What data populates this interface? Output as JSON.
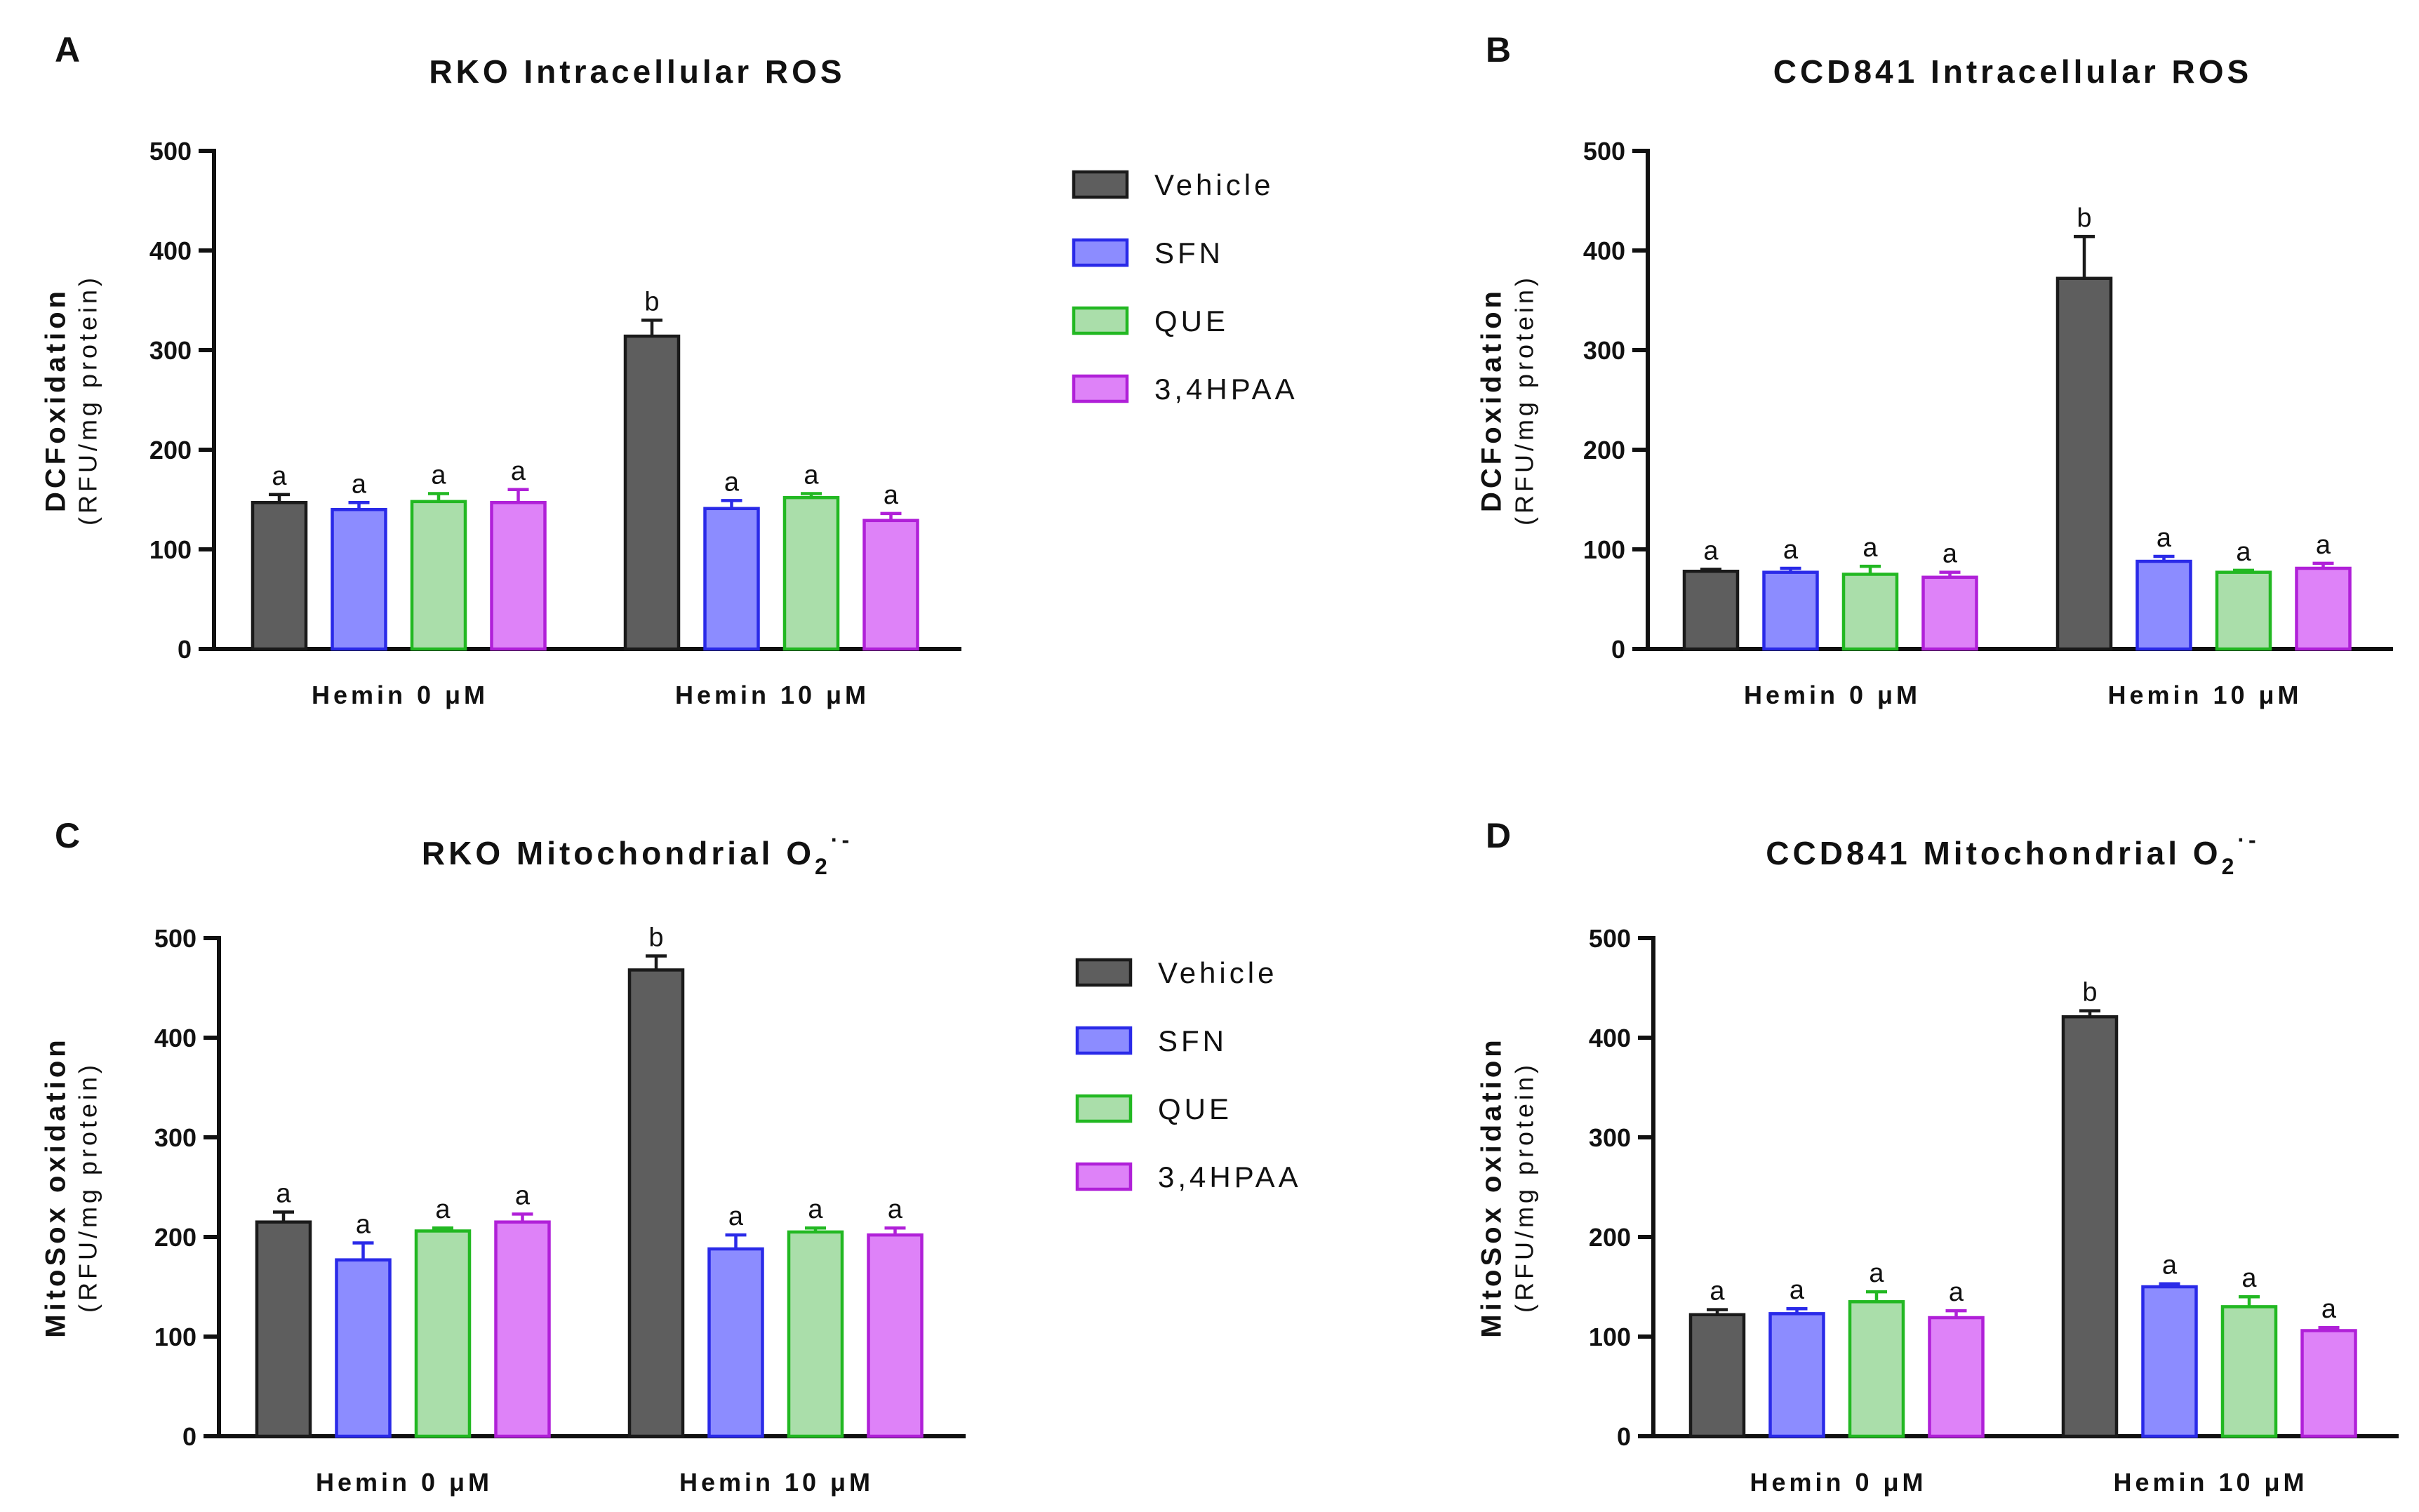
{
  "legend": [
    {
      "name": "Vehicle",
      "fill": "#5e5e5e",
      "stroke": "#1a1a1a"
    },
    {
      "name": "SFN",
      "fill": "#8c8cff",
      "stroke": "#2a2ae8"
    },
    {
      "name": "QUE",
      "fill": "#aadeaa",
      "stroke": "#22b822"
    },
    {
      "name": "3,4HPAA",
      "fill": "#de82f8",
      "stroke": "#b020d8"
    }
  ],
  "chart_data": [
    {
      "panel": "A",
      "type": "bar",
      "title": "RKO Intracellular ROS",
      "title_sub": "",
      "title_sup": "",
      "ylabel": "DCFoxidation",
      "ylabel_sub": "(RFU/mg protein)",
      "ylim": [
        0,
        500
      ],
      "yticks": [
        "0",
        "100",
        "200",
        "300",
        "400",
        "500"
      ],
      "categories": [
        "Hemin 0 μM",
        "Hemin 10 μM"
      ],
      "series": [
        {
          "name": "Vehicle",
          "values": [
            147,
            314
          ],
          "errors": [
            8,
            16
          ],
          "labels": [
            "a",
            "b"
          ]
        },
        {
          "name": "SFN",
          "values": [
            140,
            141
          ],
          "errors": [
            7,
            8
          ],
          "labels": [
            "a",
            "a"
          ]
        },
        {
          "name": "QUE",
          "values": [
            148,
            152
          ],
          "errors": [
            8,
            4
          ],
          "labels": [
            "a",
            "a"
          ]
        },
        {
          "name": "3,4HPAA",
          "values": [
            147,
            129
          ],
          "errors": [
            13,
            7
          ],
          "labels": [
            "a",
            "a"
          ]
        }
      ]
    },
    {
      "panel": "B",
      "type": "bar",
      "title": "CCD841 Intracellular ROS",
      "title_sub": "",
      "title_sup": "",
      "ylabel": "DCFoxidation",
      "ylabel_sub": "(RFU/mg protein)",
      "ylim": [
        0,
        500
      ],
      "yticks": [
        "0",
        "100",
        "200",
        "300",
        "400",
        "500"
      ],
      "categories": [
        "Hemin 0 μM",
        "Hemin 10 μM"
      ],
      "series": [
        {
          "name": "Vehicle",
          "values": [
            78,
            372
          ],
          "errors": [
            2,
            42
          ],
          "labels": [
            "a",
            "b"
          ]
        },
        {
          "name": "SFN",
          "values": [
            77,
            88
          ],
          "errors": [
            4,
            5
          ],
          "labels": [
            "a",
            "a"
          ]
        },
        {
          "name": "QUE",
          "values": [
            75,
            77
          ],
          "errors": [
            8,
            2
          ],
          "labels": [
            "a",
            "a"
          ]
        },
        {
          "name": "3,4HPAA",
          "values": [
            72,
            81
          ],
          "errors": [
            5,
            5
          ],
          "labels": [
            "a",
            "a"
          ]
        }
      ]
    },
    {
      "panel": "C",
      "type": "bar",
      "title": "RKO Mitochondrial O",
      "title_sub": "2",
      "title_sup": "·-",
      "ylabel": "MitoSox oxidation",
      "ylabel_sub": "(RFU/mg protein)",
      "ylim": [
        0,
        500
      ],
      "yticks": [
        "0",
        "100",
        "200",
        "300",
        "400",
        "500"
      ],
      "categories": [
        "Hemin 0 μM",
        "Hemin 10 μM"
      ],
      "series": [
        {
          "name": "Vehicle",
          "values": [
            215,
            468
          ],
          "errors": [
            10,
            14
          ],
          "labels": [
            "a",
            "b"
          ]
        },
        {
          "name": "SFN",
          "values": [
            177,
            188
          ],
          "errors": [
            17,
            14
          ],
          "labels": [
            "a",
            "a"
          ]
        },
        {
          "name": "QUE",
          "values": [
            206,
            205
          ],
          "errors": [
            3,
            4
          ],
          "labels": [
            "a",
            "a"
          ]
        },
        {
          "name": "3,4HPAA",
          "values": [
            215,
            202
          ],
          "errors": [
            8,
            7
          ],
          "labels": [
            "a",
            "a"
          ]
        }
      ]
    },
    {
      "panel": "D",
      "type": "bar",
      "title": "CCD841 Mitochondrial O",
      "title_sub": "2",
      "title_sup": "·-",
      "ylabel": "MitoSox oxidation",
      "ylabel_sub": "(RFU/mg protein)",
      "ylim": [
        0,
        500
      ],
      "yticks": [
        "0",
        "100",
        "200",
        "300",
        "400",
        "500"
      ],
      "categories": [
        "Hemin 0 μM",
        "Hemin 10 μM"
      ],
      "series": [
        {
          "name": "Vehicle",
          "values": [
            122,
            421
          ],
          "errors": [
            5,
            6
          ],
          "labels": [
            "a",
            "b"
          ]
        },
        {
          "name": "SFN",
          "values": [
            123,
            150
          ],
          "errors": [
            5,
            3
          ],
          "labels": [
            "a",
            "a"
          ]
        },
        {
          "name": "QUE",
          "values": [
            135,
            130
          ],
          "errors": [
            10,
            10
          ],
          "labels": [
            "a",
            "a"
          ]
        },
        {
          "name": "3,4HPAA",
          "values": [
            119,
            106
          ],
          "errors": [
            7,
            3
          ],
          "labels": [
            "a",
            "a"
          ]
        }
      ]
    }
  ]
}
